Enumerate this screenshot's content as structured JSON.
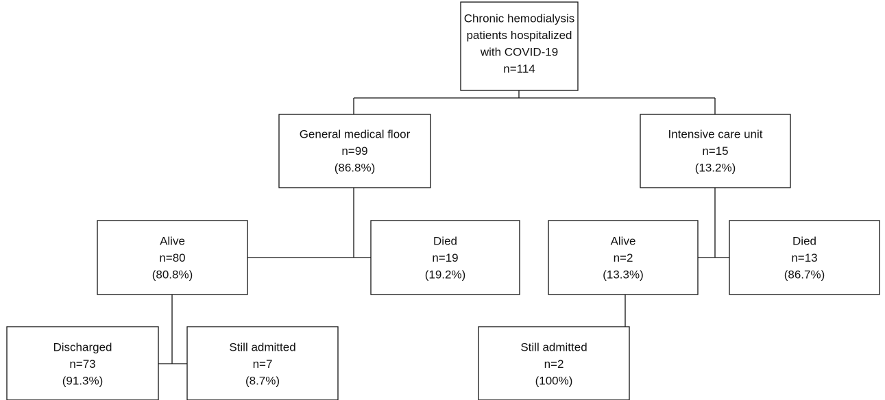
{
  "nodes": [
    {
      "id": "root",
      "lines": [
        "Chronic hemodialysis",
        "patients hospitalized",
        "with COVID-19",
        "n=114"
      ]
    },
    {
      "id": "general-floor",
      "lines": [
        "General medical floor",
        "n=99",
        "(86.8%)"
      ]
    },
    {
      "id": "icu",
      "lines": [
        "Intensive care unit",
        "n=15",
        "(13.2%)"
      ]
    },
    {
      "id": "floor-alive",
      "lines": [
        "Alive",
        "n=80",
        "(80.8%)"
      ]
    },
    {
      "id": "floor-died",
      "lines": [
        "Died",
        "n=19",
        "(19.2%)"
      ]
    },
    {
      "id": "icu-alive",
      "lines": [
        "Alive",
        "n=2",
        "(13.3%)"
      ]
    },
    {
      "id": "icu-died",
      "lines": [
        "Died",
        "n=13",
        "(86.7%)"
      ]
    },
    {
      "id": "floor-discharged",
      "lines": [
        "Discharged",
        "n=73",
        "(91.3%)"
      ]
    },
    {
      "id": "floor-still-admitted",
      "lines": [
        "Still admitted",
        "n=7",
        "(8.7%)"
      ]
    },
    {
      "id": "icu-still-admitted",
      "lines": [
        "Still admitted",
        "n=2",
        "(100%)"
      ]
    }
  ]
}
